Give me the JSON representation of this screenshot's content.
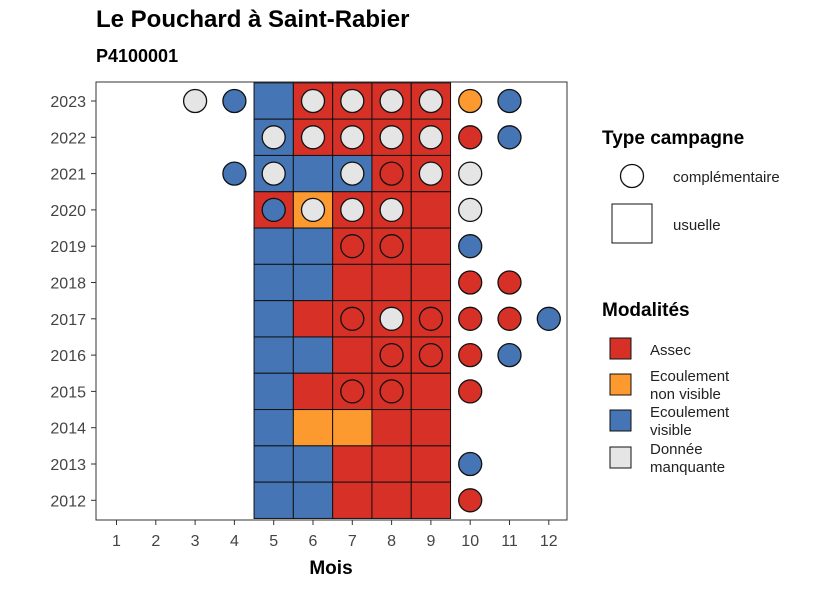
{
  "title": "Le Pouchard à Saint-Rabier",
  "subtitle": "P4100001",
  "chart_data": {
    "type": "heatmap",
    "xlabel": "Mois",
    "ylabel": "",
    "x_ticks": [
      "1",
      "2",
      "3",
      "4",
      "5",
      "6",
      "7",
      "8",
      "9",
      "10",
      "11",
      "12"
    ],
    "y_ticks": [
      "2012",
      "2013",
      "2014",
      "2015",
      "2016",
      "2017",
      "2018",
      "2019",
      "2020",
      "2021",
      "2022",
      "2023"
    ],
    "colors": {
      "Assec": "#d73027",
      "Ecoulement non visible": "#fd9a2f",
      "Ecoulement visible": "#4575b4",
      "Donnée manquante": "#e5e5e5"
    },
    "usuelle": [
      {
        "year": 2023,
        "month": 5,
        "status": "Ecoulement visible"
      },
      {
        "year": 2023,
        "month": 6,
        "status": "Assec"
      },
      {
        "year": 2023,
        "month": 7,
        "status": "Assec"
      },
      {
        "year": 2023,
        "month": 8,
        "status": "Assec"
      },
      {
        "year": 2023,
        "month": 9,
        "status": "Assec"
      },
      {
        "year": 2022,
        "month": 5,
        "status": "Ecoulement visible"
      },
      {
        "year": 2022,
        "month": 6,
        "status": "Assec"
      },
      {
        "year": 2022,
        "month": 7,
        "status": "Assec"
      },
      {
        "year": 2022,
        "month": 8,
        "status": "Assec"
      },
      {
        "year": 2022,
        "month": 9,
        "status": "Assec"
      },
      {
        "year": 2021,
        "month": 5,
        "status": "Ecoulement visible"
      },
      {
        "year": 2021,
        "month": 6,
        "status": "Ecoulement visible"
      },
      {
        "year": 2021,
        "month": 7,
        "status": "Ecoulement visible"
      },
      {
        "year": 2021,
        "month": 8,
        "status": "Assec"
      },
      {
        "year": 2021,
        "month": 9,
        "status": "Assec"
      },
      {
        "year": 2020,
        "month": 5,
        "status": "Assec"
      },
      {
        "year": 2020,
        "month": 6,
        "status": "Ecoulement non visible"
      },
      {
        "year": 2020,
        "month": 7,
        "status": "Assec"
      },
      {
        "year": 2020,
        "month": 8,
        "status": "Assec"
      },
      {
        "year": 2020,
        "month": 9,
        "status": "Assec"
      },
      {
        "year": 2019,
        "month": 5,
        "status": "Ecoulement visible"
      },
      {
        "year": 2019,
        "month": 6,
        "status": "Ecoulement visible"
      },
      {
        "year": 2019,
        "month": 7,
        "status": "Assec"
      },
      {
        "year": 2019,
        "month": 8,
        "status": "Assec"
      },
      {
        "year": 2019,
        "month": 9,
        "status": "Assec"
      },
      {
        "year": 2018,
        "month": 5,
        "status": "Ecoulement visible"
      },
      {
        "year": 2018,
        "month": 6,
        "status": "Ecoulement visible"
      },
      {
        "year": 2018,
        "month": 7,
        "status": "Assec"
      },
      {
        "year": 2018,
        "month": 8,
        "status": "Assec"
      },
      {
        "year": 2018,
        "month": 9,
        "status": "Assec"
      },
      {
        "year": 2017,
        "month": 5,
        "status": "Ecoulement visible"
      },
      {
        "year": 2017,
        "month": 6,
        "status": "Assec"
      },
      {
        "year": 2017,
        "month": 7,
        "status": "Assec"
      },
      {
        "year": 2017,
        "month": 8,
        "status": "Assec"
      },
      {
        "year": 2017,
        "month": 9,
        "status": "Assec"
      },
      {
        "year": 2016,
        "month": 5,
        "status": "Ecoulement visible"
      },
      {
        "year": 2016,
        "month": 6,
        "status": "Ecoulement visible"
      },
      {
        "year": 2016,
        "month": 7,
        "status": "Assec"
      },
      {
        "year": 2016,
        "month": 8,
        "status": "Assec"
      },
      {
        "year": 2016,
        "month": 9,
        "status": "Assec"
      },
      {
        "year": 2015,
        "month": 5,
        "status": "Ecoulement visible"
      },
      {
        "year": 2015,
        "month": 6,
        "status": "Assec"
      },
      {
        "year": 2015,
        "month": 7,
        "status": "Assec"
      },
      {
        "year": 2015,
        "month": 8,
        "status": "Assec"
      },
      {
        "year": 2015,
        "month": 9,
        "status": "Assec"
      },
      {
        "year": 2014,
        "month": 5,
        "status": "Ecoulement visible"
      },
      {
        "year": 2014,
        "month": 6,
        "status": "Ecoulement non visible"
      },
      {
        "year": 2014,
        "month": 7,
        "status": "Ecoulement non visible"
      },
      {
        "year": 2014,
        "month": 8,
        "status": "Assec"
      },
      {
        "year": 2014,
        "month": 9,
        "status": "Assec"
      },
      {
        "year": 2013,
        "month": 5,
        "status": "Ecoulement visible"
      },
      {
        "year": 2013,
        "month": 6,
        "status": "Ecoulement visible"
      },
      {
        "year": 2013,
        "month": 7,
        "status": "Assec"
      },
      {
        "year": 2013,
        "month": 8,
        "status": "Assec"
      },
      {
        "year": 2013,
        "month": 9,
        "status": "Assec"
      },
      {
        "year": 2012,
        "month": 5,
        "status": "Ecoulement visible"
      },
      {
        "year": 2012,
        "month": 6,
        "status": "Ecoulement visible"
      },
      {
        "year": 2012,
        "month": 7,
        "status": "Assec"
      },
      {
        "year": 2012,
        "month": 8,
        "status": "Assec"
      },
      {
        "year": 2012,
        "month": 9,
        "status": "Assec"
      }
    ],
    "complementaire": [
      {
        "year": 2023,
        "month": 3,
        "status": "Donnée manquante"
      },
      {
        "year": 2023,
        "month": 4,
        "status": "Ecoulement visible"
      },
      {
        "year": 2023,
        "month": 6,
        "status": "Donnée manquante"
      },
      {
        "year": 2023,
        "month": 7,
        "status": "Donnée manquante"
      },
      {
        "year": 2023,
        "month": 8,
        "status": "Donnée manquante"
      },
      {
        "year": 2023,
        "month": 9,
        "status": "Donnée manquante"
      },
      {
        "year": 2023,
        "month": 10,
        "status": "Ecoulement non visible"
      },
      {
        "year": 2023,
        "month": 11,
        "status": "Ecoulement visible"
      },
      {
        "year": 2022,
        "month": 5,
        "status": "Donnée manquante"
      },
      {
        "year": 2022,
        "month": 6,
        "status": "Donnée manquante"
      },
      {
        "year": 2022,
        "month": 7,
        "status": "Donnée manquante"
      },
      {
        "year": 2022,
        "month": 8,
        "status": "Donnée manquante"
      },
      {
        "year": 2022,
        "month": 9,
        "status": "Donnée manquante"
      },
      {
        "year": 2022,
        "month": 10,
        "status": "Assec"
      },
      {
        "year": 2022,
        "month": 11,
        "status": "Ecoulement visible"
      },
      {
        "year": 2021,
        "month": 4,
        "status": "Ecoulement visible"
      },
      {
        "year": 2021,
        "month": 5,
        "status": "Donnée manquante"
      },
      {
        "year": 2021,
        "month": 7,
        "status": "Donnée manquante"
      },
      {
        "year": 2021,
        "month": 8,
        "status": "Assec"
      },
      {
        "year": 2021,
        "month": 9,
        "status": "Donnée manquante"
      },
      {
        "year": 2021,
        "month": 10,
        "status": "Donnée manquante"
      },
      {
        "year": 2020,
        "month": 5,
        "status": "Ecoulement visible"
      },
      {
        "year": 2020,
        "month": 6,
        "status": "Donnée manquante"
      },
      {
        "year": 2020,
        "month": 7,
        "status": "Donnée manquante"
      },
      {
        "year": 2020,
        "month": 8,
        "status": "Donnée manquante"
      },
      {
        "year": 2020,
        "month": 10,
        "status": "Donnée manquante"
      },
      {
        "year": 2019,
        "month": 7,
        "status": "Assec"
      },
      {
        "year": 2019,
        "month": 8,
        "status": "Assec"
      },
      {
        "year": 2019,
        "month": 10,
        "status": "Ecoulement visible"
      },
      {
        "year": 2018,
        "month": 10,
        "status": "Assec"
      },
      {
        "year": 2018,
        "month": 11,
        "status": "Assec"
      },
      {
        "year": 2017,
        "month": 7,
        "status": "Assec"
      },
      {
        "year": 2017,
        "month": 8,
        "status": "Donnée manquante"
      },
      {
        "year": 2017,
        "month": 9,
        "status": "Assec"
      },
      {
        "year": 2017,
        "month": 10,
        "status": "Assec"
      },
      {
        "year": 2017,
        "month": 11,
        "status": "Assec"
      },
      {
        "year": 2017,
        "month": 12,
        "status": "Ecoulement visible"
      },
      {
        "year": 2016,
        "month": 8,
        "status": "Assec"
      },
      {
        "year": 2016,
        "month": 9,
        "status": "Assec"
      },
      {
        "year": 2016,
        "month": 10,
        "status": "Assec"
      },
      {
        "year": 2016,
        "month": 11,
        "status": "Ecoulement visible"
      },
      {
        "year": 2015,
        "month": 7,
        "status": "Assec"
      },
      {
        "year": 2015,
        "month": 8,
        "status": "Assec"
      },
      {
        "year": 2015,
        "month": 10,
        "status": "Assec"
      },
      {
        "year": 2013,
        "month": 10,
        "status": "Ecoulement visible"
      },
      {
        "year": 2012,
        "month": 10,
        "status": "Assec"
      }
    ],
    "legend": {
      "type_title": "Type campagne",
      "type_items": [
        {
          "shape": "circle",
          "label": "complémentaire"
        },
        {
          "shape": "square",
          "label": "usuelle"
        }
      ],
      "mod_title": "Modalités",
      "mod_items": [
        {
          "key": "Assec",
          "lines": [
            "Assec"
          ]
        },
        {
          "key": "Ecoulement non visible",
          "lines": [
            "Ecoulement",
            "non visible"
          ]
        },
        {
          "key": "Ecoulement visible",
          "lines": [
            "Ecoulement",
            "visible"
          ]
        },
        {
          "key": "Donnée manquante",
          "lines": [
            "Donnée",
            "manquante"
          ]
        }
      ]
    }
  }
}
